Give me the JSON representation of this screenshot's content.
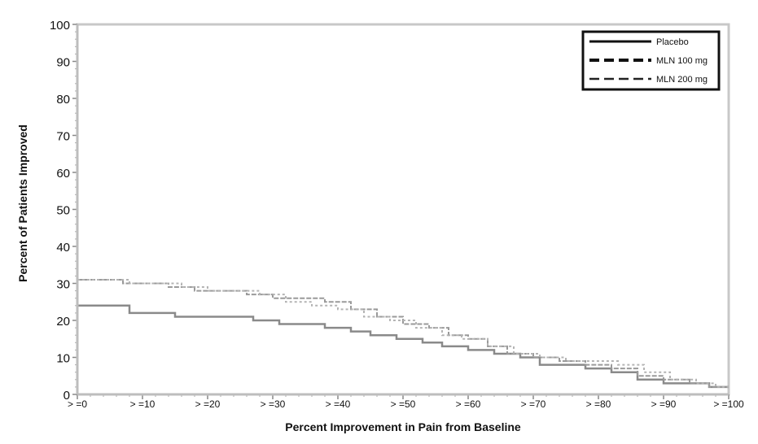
{
  "chart_data": {
    "type": "line",
    "title": "",
    "xlabel": "Percent Improvement in Pain from Baseline",
    "ylabel": "Percent of Patients Improved",
    "xlim": [
      0,
      100
    ],
    "ylim": [
      0,
      100
    ],
    "x_tick_labels": [
      ">=0",
      ">=10",
      ">=20",
      ">=30",
      ">=40",
      ">=50",
      ">=60",
      ">=70",
      ">=80",
      ">=90",
      ">=100"
    ],
    "y_ticks": [
      0,
      10,
      20,
      30,
      40,
      50,
      60,
      70,
      80,
      90,
      100
    ],
    "legend_position": "top-right",
    "series": [
      {
        "name": "Placebo",
        "style": "solid",
        "color": "#8a8a8a",
        "points": [
          [
            0,
            24
          ],
          [
            6,
            24
          ],
          [
            8,
            22
          ],
          [
            12,
            22
          ],
          [
            15,
            21
          ],
          [
            18,
            21
          ],
          [
            23,
            21
          ],
          [
            27,
            20
          ],
          [
            31,
            19
          ],
          [
            35,
            19
          ],
          [
            38,
            18
          ],
          [
            42,
            17
          ],
          [
            45,
            16
          ],
          [
            49,
            15
          ],
          [
            53,
            14
          ],
          [
            56,
            13
          ],
          [
            60,
            12
          ],
          [
            64,
            11
          ],
          [
            68,
            10
          ],
          [
            71,
            8
          ],
          [
            75,
            8
          ],
          [
            78,
            7
          ],
          [
            82,
            6
          ],
          [
            86,
            4
          ],
          [
            90,
            3
          ],
          [
            94,
            3
          ],
          [
            97,
            2
          ],
          [
            100,
            2
          ]
        ]
      },
      {
        "name": "MLN 100 mg",
        "style": "dashed",
        "color": "#9a9a9a",
        "points": [
          [
            0,
            31
          ],
          [
            3,
            31
          ],
          [
            7,
            30
          ],
          [
            11,
            30
          ],
          [
            14,
            29
          ],
          [
            18,
            28
          ],
          [
            22,
            28
          ],
          [
            26,
            27
          ],
          [
            30,
            26
          ],
          [
            34,
            26
          ],
          [
            38,
            25
          ],
          [
            42,
            23
          ],
          [
            46,
            21
          ],
          [
            50,
            19
          ],
          [
            54,
            18
          ],
          [
            57,
            16
          ],
          [
            60,
            15
          ],
          [
            63,
            13
          ],
          [
            66,
            11
          ],
          [
            70,
            10
          ],
          [
            74,
            9
          ],
          [
            78,
            8
          ],
          [
            82,
            7
          ],
          [
            86,
            5
          ],
          [
            90,
            4
          ],
          [
            94,
            3
          ],
          [
            97,
            2
          ],
          [
            100,
            2
          ]
        ]
      },
      {
        "name": "MLN 200 mg",
        "style": "dashed",
        "color": "#b4b4b4",
        "points": [
          [
            0,
            31
          ],
          [
            4,
            31
          ],
          [
            8,
            30
          ],
          [
            12,
            30
          ],
          [
            16,
            29
          ],
          [
            20,
            28
          ],
          [
            24,
            28
          ],
          [
            28,
            27
          ],
          [
            32,
            25
          ],
          [
            36,
            24
          ],
          [
            40,
            23
          ],
          [
            44,
            21
          ],
          [
            48,
            20
          ],
          [
            52,
            18
          ],
          [
            56,
            16
          ],
          [
            59,
            15
          ],
          [
            63,
            13
          ],
          [
            67,
            11
          ],
          [
            71,
            10
          ],
          [
            75,
            9
          ],
          [
            79,
            9
          ],
          [
            83,
            8
          ],
          [
            87,
            6
          ],
          [
            91,
            4
          ],
          [
            95,
            3
          ],
          [
            98,
            2
          ],
          [
            100,
            2
          ]
        ]
      }
    ]
  }
}
